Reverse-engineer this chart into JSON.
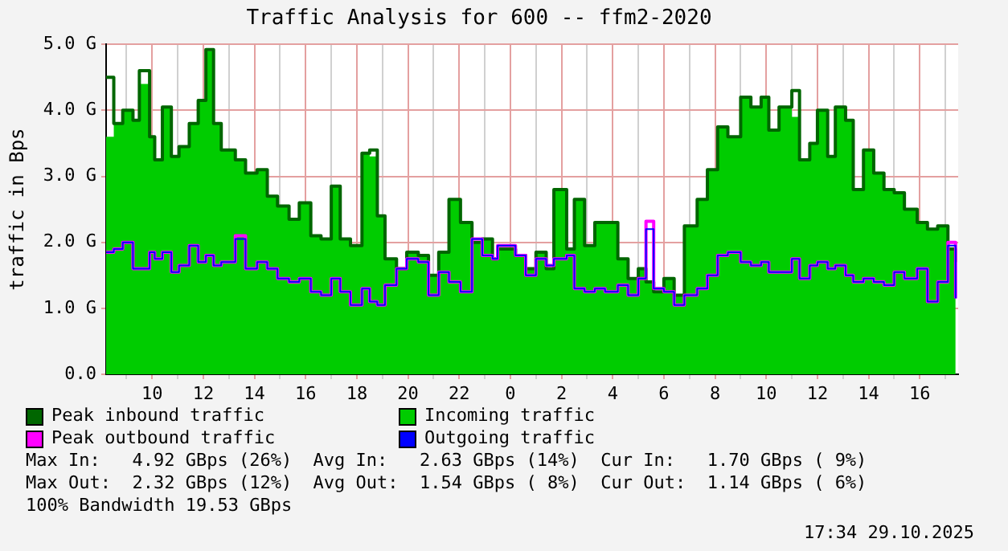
{
  "chart_data": {
    "type": "area",
    "title": "Traffic Analysis for 600 -- ffm2-2020",
    "ylabel": "traffic in Bps",
    "x": [
      "2025-10-28T08:12",
      "2025-10-28T08:30",
      "2025-10-28T08:51",
      "2025-10-28T09:15",
      "2025-10-28T09:30",
      "2025-10-28T09:54",
      "2025-10-28T10:06",
      "2025-10-28T10:24",
      "2025-10-28T10:45",
      "2025-10-28T11:03",
      "2025-10-28T11:27",
      "2025-10-28T11:48",
      "2025-10-28T12:06",
      "2025-10-28T12:24",
      "2025-10-28T12:42",
      "2025-10-28T13:15",
      "2025-10-28T13:39",
      "2025-10-28T14:06",
      "2025-10-28T14:30",
      "2025-10-28T14:54",
      "2025-10-28T15:21",
      "2025-10-28T15:45",
      "2025-10-28T16:12",
      "2025-10-28T16:36",
      "2025-10-28T17:00",
      "2025-10-28T17:21",
      "2025-10-28T17:45",
      "2025-10-28T18:12",
      "2025-10-28T18:30",
      "2025-10-28T18:48",
      "2025-10-28T19:06",
      "2025-10-28T19:33",
      "2025-10-28T19:57",
      "2025-10-28T20:24",
      "2025-10-28T20:48",
      "2025-10-28T21:12",
      "2025-10-28T21:36",
      "2025-10-28T22:03",
      "2025-10-28T22:30",
      "2025-10-28T22:54",
      "2025-10-28T23:18",
      "2025-10-28T23:30",
      "2025-10-29T00:12",
      "2025-10-29T00:36",
      "2025-10-29T01:00",
      "2025-10-29T01:24",
      "2025-10-29T01:42",
      "2025-10-29T02:12",
      "2025-10-29T02:30",
      "2025-10-29T02:54",
      "2025-10-29T03:18",
      "2025-10-29T03:42",
      "2025-10-29T04:12",
      "2025-10-29T04:36",
      "2025-10-29T05:00",
      "2025-10-29T05:18",
      "2025-10-29T05:36",
      "2025-10-29T06:00",
      "2025-10-29T06:24",
      "2025-10-29T06:48",
      "2025-10-29T07:18",
      "2025-10-29T07:42",
      "2025-10-29T08:06",
      "2025-10-29T08:30",
      "2025-10-29T09:00",
      "2025-10-29T09:24",
      "2025-10-29T09:48",
      "2025-10-29T10:06",
      "2025-10-29T10:30",
      "2025-10-29T11:00",
      "2025-10-29T11:18",
      "2025-10-29T11:42",
      "2025-10-29T12:00",
      "2025-10-29T12:24",
      "2025-10-29T12:42",
      "2025-10-29T13:06",
      "2025-10-29T13:24",
      "2025-10-29T13:48",
      "2025-10-29T14:12",
      "2025-10-29T14:36",
      "2025-10-29T15:00",
      "2025-10-29T15:24",
      "2025-10-29T15:54",
      "2025-10-29T16:18",
      "2025-10-29T16:42",
      "2025-10-29T17:06",
      "2025-10-29T17:24"
    ],
    "series": [
      {
        "name": "Peak inbound traffic",
        "type": "step",
        "color": "#006600",
        "values": [
          4.5,
          3.8,
          4.0,
          3.85,
          4.6,
          3.6,
          3.25,
          4.05,
          3.3,
          3.45,
          3.8,
          4.15,
          4.92,
          3.8,
          3.4,
          3.25,
          3.05,
          3.1,
          2.7,
          2.55,
          2.35,
          2.6,
          2.1,
          2.05,
          2.85,
          2.05,
          1.95,
          3.35,
          3.4,
          2.4,
          1.75,
          1.6,
          1.85,
          1.8,
          1.5,
          1.85,
          2.65,
          2.3,
          2.0,
          2.05,
          1.75,
          1.9,
          1.8,
          1.6,
          1.85,
          1.6,
          2.8,
          1.9,
          2.65,
          1.95,
          2.3,
          2.3,
          1.75,
          1.45,
          1.6,
          1.4,
          1.25,
          1.45,
          1.2,
          2.25,
          2.65,
          3.1,
          3.75,
          3.6,
          4.2,
          4.05,
          4.2,
          3.7,
          4.05,
          4.3,
          3.25,
          3.5,
          4.0,
          3.3,
          4.05,
          3.85,
          2.8,
          3.4,
          3.05,
          2.8,
          2.75,
          2.5,
          2.3,
          2.2,
          2.25,
          1.9,
          1.7
        ]
      },
      {
        "name": "Incoming traffic",
        "type": "area",
        "color": "#00cc00",
        "values": [
          3.6,
          3.8,
          4.0,
          3.85,
          4.4,
          3.6,
          3.25,
          4.05,
          3.3,
          3.45,
          3.8,
          4.15,
          4.9,
          3.8,
          3.4,
          3.25,
          3.05,
          3.1,
          2.7,
          2.55,
          2.35,
          2.6,
          2.1,
          2.05,
          2.85,
          2.05,
          1.95,
          3.35,
          3.3,
          2.4,
          1.75,
          1.6,
          1.85,
          1.8,
          1.5,
          1.85,
          2.65,
          2.3,
          2.0,
          2.05,
          1.75,
          1.9,
          1.8,
          1.6,
          1.85,
          1.6,
          2.8,
          1.9,
          2.65,
          1.95,
          2.3,
          2.3,
          1.75,
          1.45,
          1.6,
          1.4,
          1.25,
          1.45,
          1.2,
          2.25,
          2.65,
          3.1,
          3.75,
          3.6,
          4.2,
          4.05,
          4.2,
          3.7,
          4.05,
          3.9,
          3.25,
          3.5,
          4.0,
          3.3,
          4.05,
          3.85,
          2.8,
          3.4,
          3.05,
          2.8,
          2.75,
          2.5,
          2.3,
          2.2,
          2.25,
          1.9,
          1.7
        ]
      },
      {
        "name": "Peak outbound traffic",
        "type": "step",
        "color": "#ff00ff",
        "values": [
          1.85,
          1.9,
          2.0,
          1.6,
          1.6,
          1.85,
          1.75,
          1.85,
          1.55,
          1.65,
          1.95,
          1.7,
          1.8,
          1.65,
          1.7,
          2.1,
          1.6,
          1.7,
          1.6,
          1.45,
          1.4,
          1.45,
          1.25,
          1.2,
          1.45,
          1.25,
          1.05,
          1.3,
          1.1,
          1.05,
          1.35,
          1.6,
          1.75,
          1.7,
          1.2,
          1.55,
          1.4,
          1.25,
          2.05,
          1.8,
          1.75,
          1.95,
          1.8,
          1.5,
          1.75,
          1.65,
          1.75,
          1.8,
          1.3,
          1.25,
          1.3,
          1.25,
          1.35,
          1.2,
          1.45,
          2.32,
          1.3,
          1.25,
          1.05,
          1.2,
          1.3,
          1.5,
          1.8,
          1.85,
          1.7,
          1.65,
          1.7,
          1.55,
          1.55,
          1.75,
          1.45,
          1.65,
          1.7,
          1.6,
          1.65,
          1.5,
          1.4,
          1.45,
          1.4,
          1.35,
          1.55,
          1.45,
          1.6,
          1.1,
          1.4,
          2.0,
          1.15
        ]
      },
      {
        "name": "Outgoing traffic",
        "type": "step",
        "color": "#0000ff",
        "values": [
          1.85,
          1.9,
          2.0,
          1.6,
          1.6,
          1.85,
          1.75,
          1.85,
          1.55,
          1.65,
          1.95,
          1.7,
          1.8,
          1.65,
          1.7,
          2.05,
          1.6,
          1.7,
          1.6,
          1.45,
          1.4,
          1.45,
          1.25,
          1.2,
          1.45,
          1.25,
          1.05,
          1.3,
          1.1,
          1.05,
          1.35,
          1.6,
          1.75,
          1.7,
          1.2,
          1.55,
          1.4,
          1.25,
          2.05,
          1.8,
          1.75,
          1.95,
          1.8,
          1.5,
          1.75,
          1.65,
          1.75,
          1.8,
          1.3,
          1.25,
          1.3,
          1.25,
          1.35,
          1.2,
          1.45,
          2.2,
          1.3,
          1.25,
          1.05,
          1.2,
          1.3,
          1.5,
          1.8,
          1.85,
          1.7,
          1.65,
          1.7,
          1.55,
          1.55,
          1.75,
          1.45,
          1.65,
          1.7,
          1.6,
          1.65,
          1.5,
          1.4,
          1.45,
          1.4,
          1.35,
          1.55,
          1.45,
          1.6,
          1.1,
          1.4,
          1.95,
          1.15
        ]
      }
    ],
    "xlim": [
      "2025-10-28T08:12",
      "2025-10-29T17:30"
    ],
    "xticks": [
      {
        "value": "2025-10-28T09:00",
        "label": null
      },
      {
        "value": "2025-10-28T10:00",
        "label": "10"
      },
      {
        "value": "2025-10-28T11:00",
        "label": null
      },
      {
        "value": "2025-10-28T12:00",
        "label": "12"
      },
      {
        "value": "2025-10-28T13:00",
        "label": null
      },
      {
        "value": "2025-10-28T14:00",
        "label": "14"
      },
      {
        "value": "2025-10-28T15:00",
        "label": null
      },
      {
        "value": "2025-10-28T16:00",
        "label": "16"
      },
      {
        "value": "2025-10-28T17:00",
        "label": null
      },
      {
        "value": "2025-10-28T18:00",
        "label": "18"
      },
      {
        "value": "2025-10-28T19:00",
        "label": null
      },
      {
        "value": "2025-10-28T20:00",
        "label": "20"
      },
      {
        "value": "2025-10-28T21:00",
        "label": null
      },
      {
        "value": "2025-10-28T22:00",
        "label": "22"
      },
      {
        "value": "2025-10-28T23:00",
        "label": null
      },
      {
        "value": "2025-10-29T00:00",
        "label": "0"
      },
      {
        "value": "2025-10-29T01:00",
        "label": null
      },
      {
        "value": "2025-10-29T02:00",
        "label": "2"
      },
      {
        "value": "2025-10-29T03:00",
        "label": null
      },
      {
        "value": "2025-10-29T04:00",
        "label": "4"
      },
      {
        "value": "2025-10-29T05:00",
        "label": null
      },
      {
        "value": "2025-10-29T06:00",
        "label": "6"
      },
      {
        "value": "2025-10-29T07:00",
        "label": null
      },
      {
        "value": "2025-10-29T08:00",
        "label": "8"
      },
      {
        "value": "2025-10-29T09:00",
        "label": null
      },
      {
        "value": "2025-10-29T10:00",
        "label": "10"
      },
      {
        "value": "2025-10-29T11:00",
        "label": null
      },
      {
        "value": "2025-10-29T12:00",
        "label": "12"
      },
      {
        "value": "2025-10-29T13:00",
        "label": null
      },
      {
        "value": "2025-10-29T14:00",
        "label": "14"
      },
      {
        "value": "2025-10-29T15:00",
        "label": null
      },
      {
        "value": "2025-10-29T16:00",
        "label": "16"
      },
      {
        "value": "2025-10-29T17:00",
        "label": null
      }
    ],
    "ylim": [
      0,
      5
    ],
    "yticks": [
      {
        "value": 0,
        "label": "0.0"
      },
      {
        "value": 1,
        "label": "1.0 G"
      },
      {
        "value": 2,
        "label": "2.0 G"
      },
      {
        "value": 3,
        "label": "3.0 G"
      },
      {
        "value": 4,
        "label": "4.0 G"
      },
      {
        "value": 5,
        "label": "5.0 G"
      }
    ],
    "grid": true,
    "legend": "bottom",
    "marker": "none",
    "line_style": "solid",
    "annotations": [
      "Max In:   4.92 GBps (26%)  Avg In:   2.63 GBps (14%)  Cur In:   1.70 GBps ( 9%)",
      "Max Out:  2.32 GBps (12%)  Avg Out:  1.54 GBps ( 8%)  Cur Out:  1.14 GBps ( 6%)",
      "100% Bandwidth 19.53 GBps",
      "17:34 29.10.2025"
    ]
  }
}
